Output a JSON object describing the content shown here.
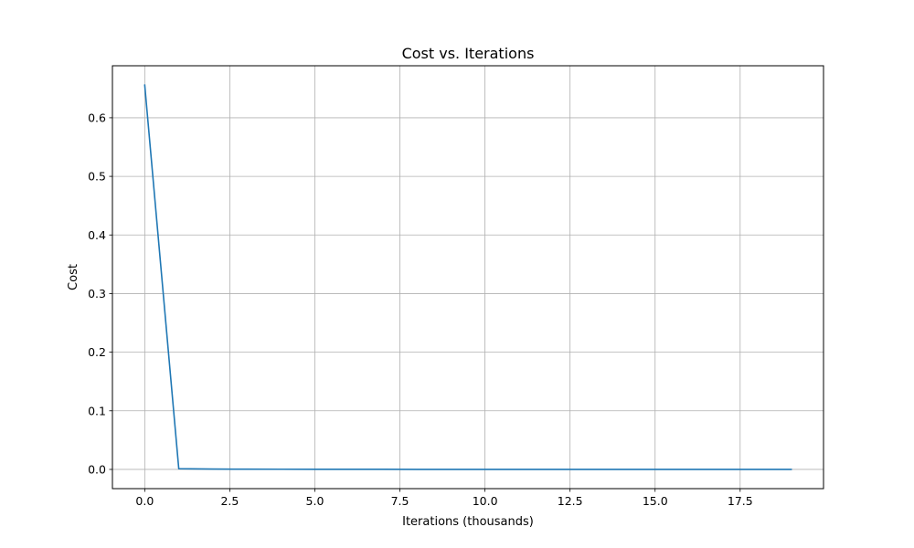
{
  "chart_data": {
    "type": "line",
    "title": "Cost vs. Iterations",
    "xlabel": "Iterations (thousands)",
    "ylabel": "Cost",
    "xlim": [
      -0.95,
      19.95
    ],
    "ylim": [
      -0.0328,
      0.6887
    ],
    "xticks": [
      0.0,
      2.5,
      5.0,
      7.5,
      10.0,
      12.5,
      15.0,
      17.5
    ],
    "xtick_labels": [
      "0.0",
      "2.5",
      "5.0",
      "7.5",
      "10.0",
      "12.5",
      "15.0",
      "17.5"
    ],
    "yticks": [
      0.0,
      0.1,
      0.2,
      0.3,
      0.4,
      0.5,
      0.6
    ],
    "ytick_labels": [
      "0.0",
      "0.1",
      "0.2",
      "0.3",
      "0.4",
      "0.5",
      "0.6"
    ],
    "grid": true,
    "series": [
      {
        "color": "#1f77b4",
        "x": [
          0,
          1,
          2,
          3,
          4,
          5,
          6,
          7,
          8,
          9,
          10,
          11,
          12,
          13,
          14,
          15,
          16,
          17,
          18,
          19
        ],
        "y": [
          0.6557,
          0.0012,
          0.0006,
          0.0004,
          0.0003,
          0.0002,
          0.0002,
          0.0002,
          0.0001,
          0.0001,
          0.0001,
          0.0001,
          0.0001,
          0.0001,
          0.0001,
          0.0001,
          0.0001,
          0.0001,
          0.0001,
          0.0001
        ]
      }
    ]
  }
}
